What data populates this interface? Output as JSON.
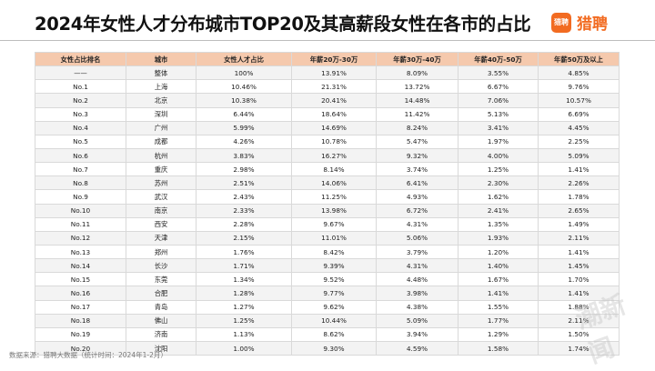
{
  "title": "2024年女性人才分布城市TOP20及其高薪段女性在各市的占比",
  "logo": {
    "box_text": "猎聘",
    "text": "猎聘",
    "color": "#f26b21"
  },
  "table": {
    "header_color": "#f5c9ad",
    "columns": [
      "女性占比排名",
      "城市",
      "女性人才占比",
      "年薪20万-30万",
      "年薪30万-40万",
      "年薪40万-50万",
      "年薪50万及以上"
    ],
    "rows": [
      [
        "——",
        "整体",
        "100%",
        "13.91%",
        "8.09%",
        "3.55%",
        "4.85%"
      ],
      [
        "No.1",
        "上海",
        "10.46%",
        "21.31%",
        "13.72%",
        "6.67%",
        "9.76%"
      ],
      [
        "No.2",
        "北京",
        "10.38%",
        "20.41%",
        "14.48%",
        "7.06%",
        "10.57%"
      ],
      [
        "No.3",
        "深圳",
        "6.44%",
        "18.64%",
        "11.42%",
        "5.13%",
        "6.69%"
      ],
      [
        "No.4",
        "广州",
        "5.99%",
        "14.69%",
        "8.24%",
        "3.41%",
        "4.45%"
      ],
      [
        "No.5",
        "成都",
        "4.26%",
        "10.78%",
        "5.47%",
        "1.97%",
        "2.25%"
      ],
      [
        "No.6",
        "杭州",
        "3.83%",
        "16.27%",
        "9.32%",
        "4.00%",
        "5.09%"
      ],
      [
        "No.7",
        "重庆",
        "2.98%",
        "8.14%",
        "3.74%",
        "1.25%",
        "1.41%"
      ],
      [
        "No.8",
        "苏州",
        "2.51%",
        "14.06%",
        "6.41%",
        "2.30%",
        "2.26%"
      ],
      [
        "No.9",
        "武汉",
        "2.43%",
        "11.25%",
        "4.93%",
        "1.62%",
        "1.78%"
      ],
      [
        "No.10",
        "南京",
        "2.33%",
        "13.98%",
        "6.72%",
        "2.41%",
        "2.65%"
      ],
      [
        "No.11",
        "西安",
        "2.28%",
        "9.67%",
        "4.31%",
        "1.35%",
        "1.49%"
      ],
      [
        "No.12",
        "天津",
        "2.15%",
        "11.01%",
        "5.06%",
        "1.93%",
        "2.11%"
      ],
      [
        "No.13",
        "郑州",
        "1.76%",
        "8.42%",
        "3.79%",
        "1.20%",
        "1.41%"
      ],
      [
        "No.14",
        "长沙",
        "1.71%",
        "9.39%",
        "4.31%",
        "1.40%",
        "1.45%"
      ],
      [
        "No.15",
        "东莞",
        "1.34%",
        "9.52%",
        "4.48%",
        "1.67%",
        "1.70%"
      ],
      [
        "No.16",
        "合肥",
        "1.28%",
        "9.77%",
        "3.98%",
        "1.41%",
        "1.41%"
      ],
      [
        "No.17",
        "青岛",
        "1.27%",
        "9.62%",
        "4.38%",
        "1.55%",
        "1.88%"
      ],
      [
        "No.18",
        "佛山",
        "1.25%",
        "10.44%",
        "5.09%",
        "1.77%",
        "2.11%"
      ],
      [
        "No.19",
        "济南",
        "1.13%",
        "8.62%",
        "3.94%",
        "1.29%",
        "1.50%"
      ],
      [
        "No.20",
        "沈阳",
        "1.00%",
        "9.30%",
        "4.59%",
        "1.58%",
        "1.74%"
      ]
    ]
  },
  "source": "数据来源：猎聘大数据（统计时间：2024年1-2月）",
  "watermark": "潮新闻"
}
